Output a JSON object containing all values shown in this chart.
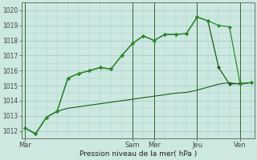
{
  "background_color": "#cce8e0",
  "grid_color": "#aacccc",
  "line_color_dark": "#1a5c1a",
  "line_color_light": "#2d8b2d",
  "xlabel": "Pression niveau de la mer( hPa )",
  "ylim": [
    1011.5,
    1020.5
  ],
  "ytick_vals": [
    1012,
    1013,
    1014,
    1015,
    1016,
    1017,
    1018,
    1019,
    1020
  ],
  "day_labels": [
    "Mar",
    "Sam",
    "Mer",
    "Jeu",
    "Ven"
  ],
  "day_tick_positions": [
    0,
    10,
    12,
    16,
    20
  ],
  "vline_positions": [
    0,
    10,
    12,
    16,
    20
  ],
  "n_points": 22,
  "series1_x": [
    0,
    1,
    2,
    3,
    4,
    5,
    6,
    7,
    8,
    9,
    10,
    11,
    12,
    13,
    14,
    15,
    16,
    17,
    18,
    19,
    20,
    21
  ],
  "series1_y": [
    1012.2,
    1011.8,
    1012.9,
    1013.3,
    1015.5,
    1015.8,
    1016.0,
    1016.2,
    1016.1,
    1017.0,
    1017.8,
    1018.3,
    1018.0,
    1018.4,
    1018.4,
    1018.45,
    1019.55,
    1019.3,
    1019.0,
    1018.9,
    1015.1,
    1015.2
  ],
  "series2_x": [
    0,
    1,
    2,
    3,
    4,
    5,
    6,
    7,
    8,
    9,
    10,
    11,
    12,
    13,
    14,
    15,
    16,
    17,
    18,
    19,
    20,
    21
  ],
  "series2_y": [
    1012.2,
    1011.8,
    1012.9,
    1013.3,
    1013.5,
    1013.6,
    1013.7,
    1013.8,
    1013.9,
    1014.0,
    1014.1,
    1014.2,
    1014.3,
    1014.4,
    1014.5,
    1014.55,
    1014.7,
    1014.9,
    1015.1,
    1015.2,
    1015.1,
    1015.2
  ],
  "series3_x": [
    0,
    1,
    2,
    3,
    4,
    5,
    6,
    7,
    8,
    9,
    10,
    11,
    12,
    13,
    14,
    15,
    16,
    17,
    18,
    19,
    20,
    21
  ],
  "series3_y": [
    1012.2,
    1011.8,
    1012.9,
    1013.3,
    1015.5,
    1015.8,
    1016.0,
    1016.2,
    1016.1,
    1017.0,
    1017.8,
    1018.3,
    1018.0,
    1018.4,
    1018.4,
    1018.45,
    1019.55,
    1019.3,
    1016.2,
    1015.1,
    1015.15,
    1015.2
  ]
}
